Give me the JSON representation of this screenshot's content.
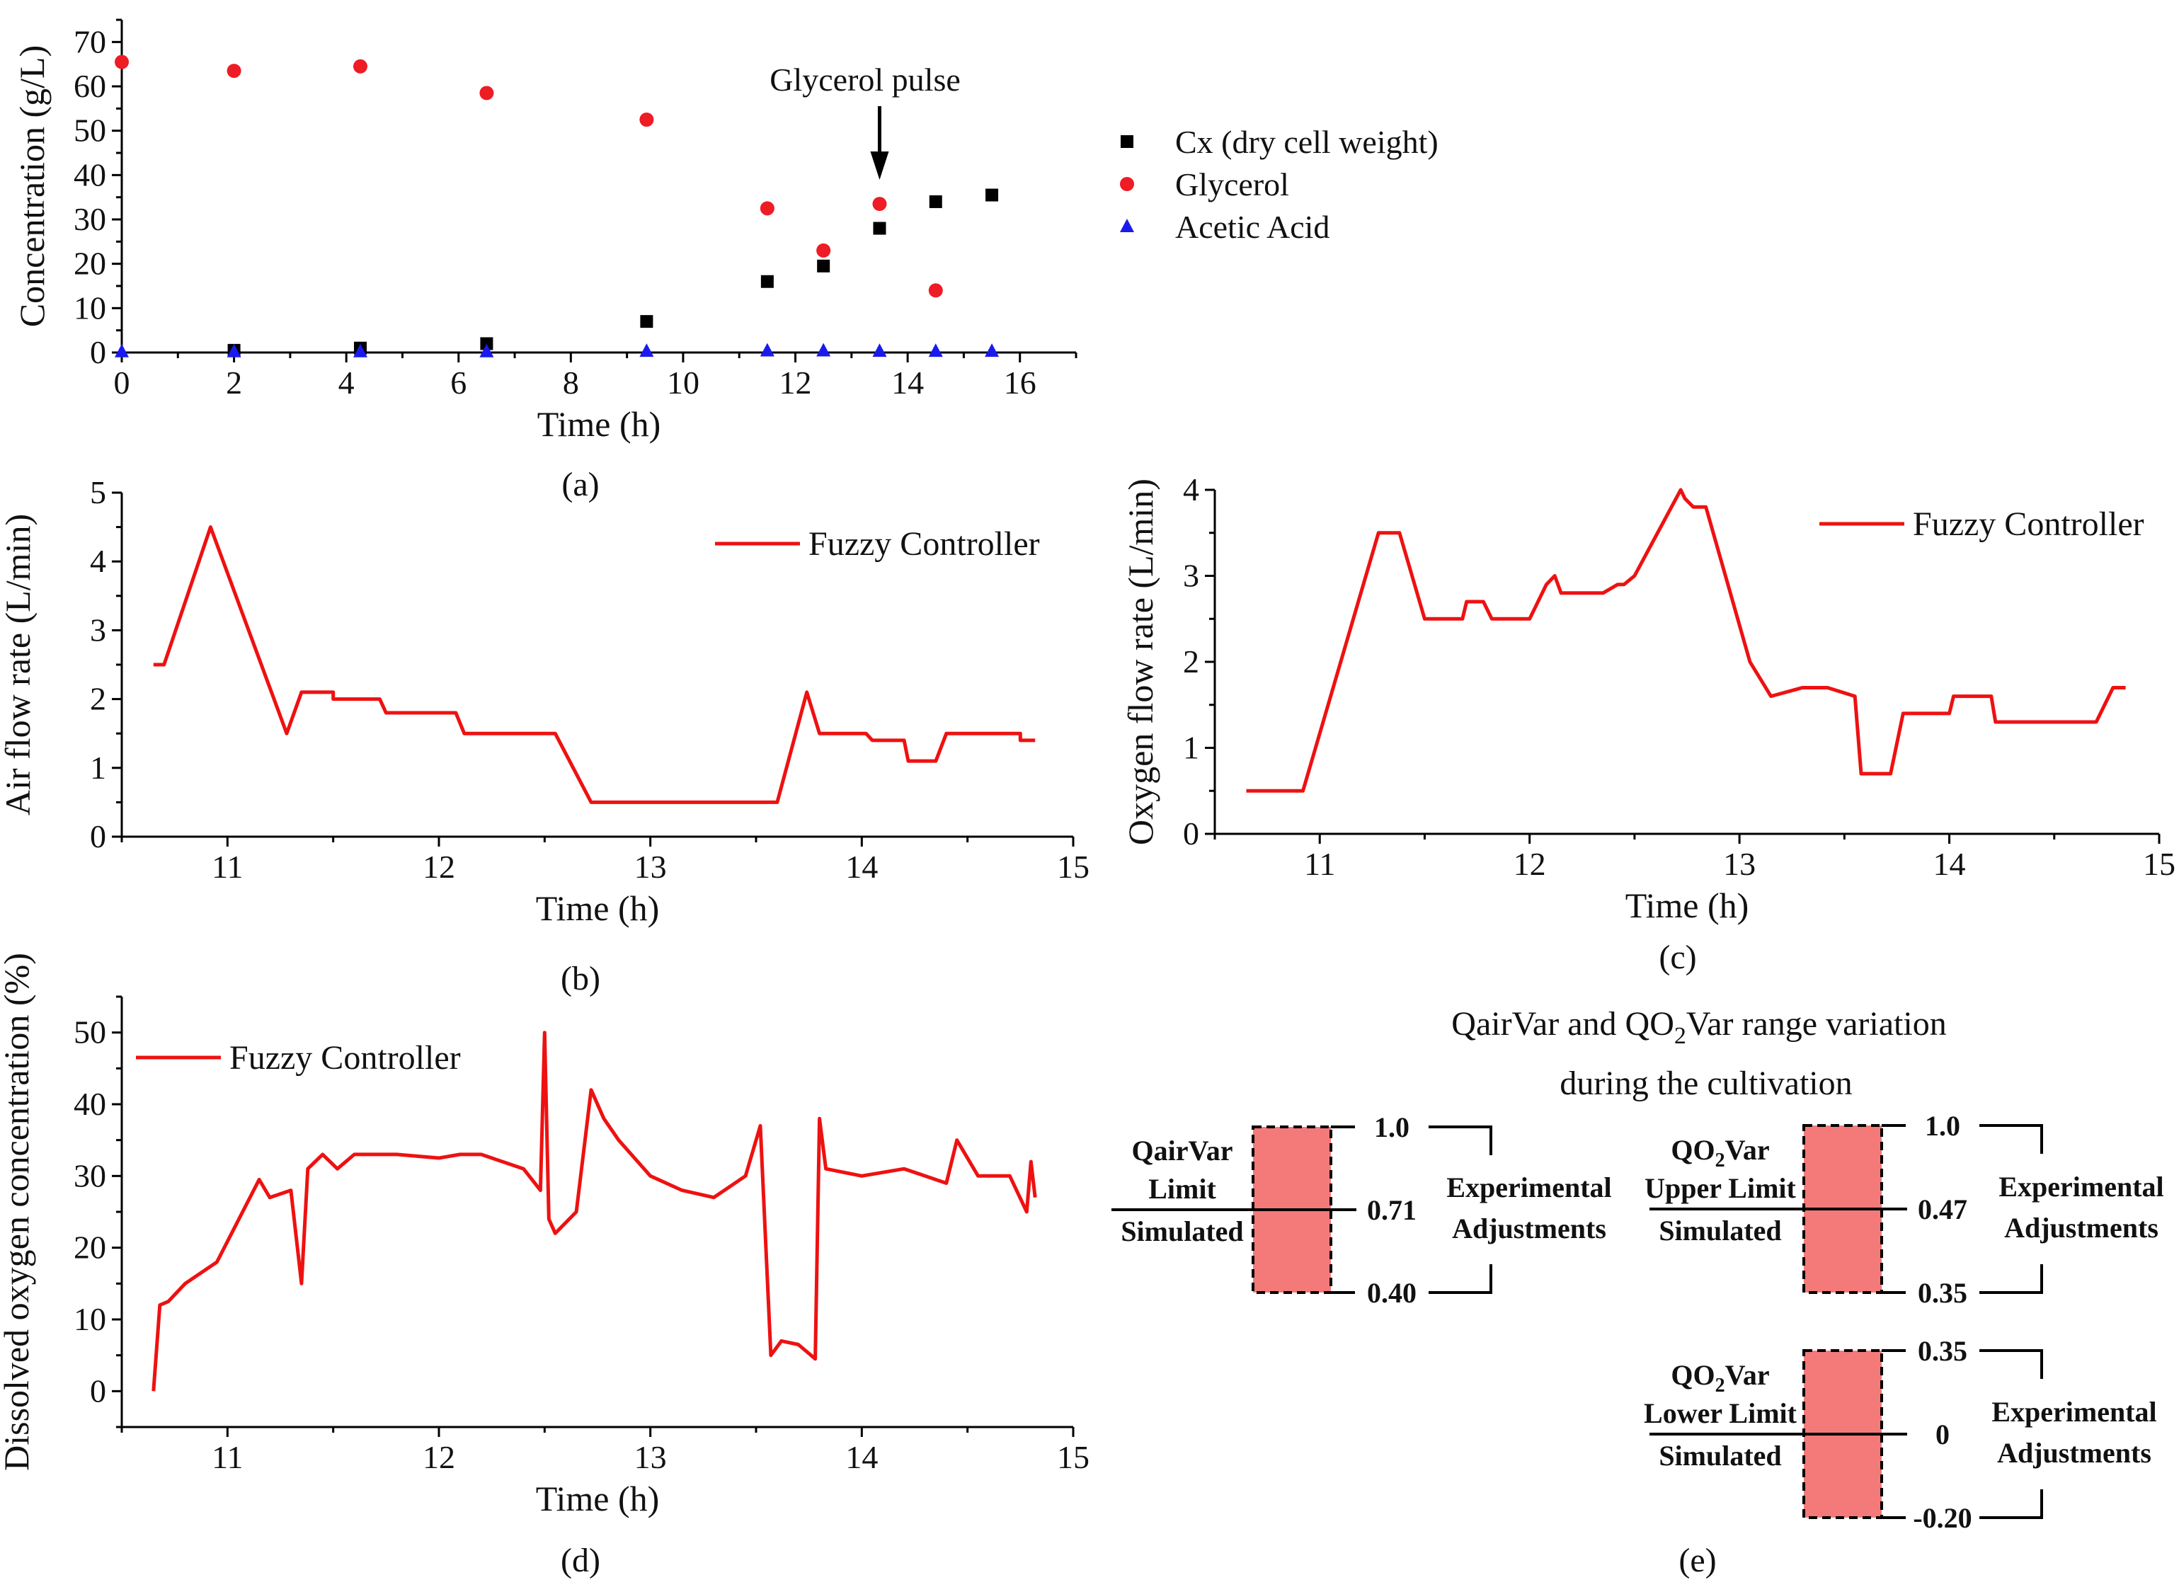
{
  "chart_data": [
    {
      "id": "a",
      "type": "scatter",
      "panel_label": "(a)",
      "xlabel": "Time (h)",
      "ylabel": "Concentration (g/L)",
      "xlim": [
        0,
        17
      ],
      "ylim": [
        0,
        75
      ],
      "xticks": [
        0,
        2,
        4,
        6,
        8,
        10,
        12,
        14,
        16
      ],
      "yticks": [
        0,
        10,
        20,
        30,
        40,
        50,
        60,
        70
      ],
      "annotation": "Glycerol pulse",
      "annotation_x": 13.5,
      "legend_position": "right",
      "series": [
        {
          "name": "Cx (dry cell weight)",
          "marker": "square",
          "color": "#000000",
          "x": [
            2,
            4.25,
            6.5,
            9.35,
            11.5,
            12.5,
            13.5,
            14.5,
            15.5
          ],
          "y": [
            0.5,
            1,
            2,
            7,
            16,
            19.5,
            28,
            34,
            35.5
          ]
        },
        {
          "name": "Glycerol",
          "marker": "circle",
          "color": "#ee1c25",
          "x": [
            0,
            2,
            4.25,
            6.5,
            9.35,
            11.5,
            12.5,
            13.5,
            14.5
          ],
          "y": [
            65.5,
            63.5,
            64.5,
            58.5,
            52.5,
            32.5,
            23,
            33.5,
            14
          ]
        },
        {
          "name": "Acetic Acid",
          "marker": "triangle",
          "color": "#1a1aee",
          "x": [
            0,
            2,
            4.25,
            6.5,
            9.35,
            11.5,
            12.5,
            13.5,
            14.5,
            15.5
          ],
          "y": [
            0.2,
            0.2,
            0.2,
            0.2,
            0.3,
            0.4,
            0.4,
            0.3,
            0.3,
            0.3
          ]
        }
      ]
    },
    {
      "id": "b",
      "type": "line",
      "panel_label": "(b)",
      "xlabel": "Time (h)",
      "ylabel": "Air flow rate (L/min)",
      "xlim": [
        10.5,
        15
      ],
      "ylim": [
        0,
        5
      ],
      "xticks": [
        11,
        12,
        13,
        14,
        15
      ],
      "yticks": [
        0,
        1,
        2,
        3,
        4,
        5
      ],
      "legend_position": "top-right",
      "series": [
        {
          "name": "Fuzzy Controller",
          "color": "#ee1111",
          "x": [
            10.65,
            10.7,
            10.92,
            11.28,
            11.35,
            11.5,
            11.5,
            11.72,
            11.75,
            12.08,
            12.12,
            12.55,
            12.72,
            13.6,
            13.74,
            13.8,
            14.02,
            14.05,
            14.2,
            14.22,
            14.35,
            14.4,
            14.75,
            14.75,
            14.82
          ],
          "y": [
            2.5,
            2.5,
            4.5,
            1.5,
            2.1,
            2.1,
            2.0,
            2.0,
            1.8,
            1.8,
            1.5,
            1.5,
            0.5,
            0.5,
            2.1,
            1.5,
            1.5,
            1.4,
            1.4,
            1.1,
            1.1,
            1.5,
            1.5,
            1.4,
            1.4
          ]
        }
      ]
    },
    {
      "id": "c",
      "type": "line",
      "panel_label": "(c)",
      "xlabel": "Time (h)",
      "ylabel": "Oxygen flow rate (L/min)",
      "xlim": [
        10.5,
        15
      ],
      "ylim": [
        0,
        4
      ],
      "xticks": [
        11,
        12,
        13,
        14,
        15
      ],
      "yticks": [
        0,
        1,
        2,
        3,
        4
      ],
      "legend_position": "top-right",
      "series": [
        {
          "name": "Fuzzy Controller",
          "color": "#ee1111",
          "x": [
            10.65,
            10.92,
            11.28,
            11.38,
            11.5,
            11.68,
            11.7,
            11.78,
            11.82,
            12.0,
            12.08,
            12.12,
            12.15,
            12.35,
            12.42,
            12.45,
            12.5,
            12.72,
            12.74,
            12.78,
            12.84,
            13.05,
            13.15,
            13.3,
            13.42,
            13.55,
            13.58,
            13.72,
            13.78,
            14.0,
            14.02,
            14.2,
            14.22,
            14.7,
            14.78,
            14.84
          ],
          "y": [
            0.5,
            0.5,
            3.5,
            3.5,
            2.5,
            2.5,
            2.7,
            2.7,
            2.5,
            2.5,
            2.9,
            3.0,
            2.8,
            2.8,
            2.9,
            2.9,
            3.0,
            4.0,
            3.9,
            3.8,
            3.8,
            2.0,
            1.6,
            1.7,
            1.7,
            1.6,
            0.7,
            0.7,
            1.4,
            1.4,
            1.6,
            1.6,
            1.3,
            1.3,
            1.7,
            1.7
          ]
        }
      ]
    },
    {
      "id": "d",
      "type": "line",
      "panel_label": "(d)",
      "xlabel": "Time (h)",
      "ylabel": "Dissolved oxygen concentration (%)",
      "xlim": [
        10.5,
        15
      ],
      "ylim": [
        -5,
        55
      ],
      "xticks": [
        11,
        12,
        13,
        14,
        15
      ],
      "yticks": [
        0,
        10,
        20,
        30,
        40,
        50
      ],
      "legend_position": "top-left",
      "series": [
        {
          "name": "Fuzzy Controller",
          "color": "#ee1111",
          "x": [
            10.65,
            10.68,
            10.72,
            10.8,
            10.95,
            11.15,
            11.2,
            11.3,
            11.35,
            11.38,
            11.45,
            11.52,
            11.6,
            11.8,
            12.0,
            12.1,
            12.2,
            12.4,
            12.48,
            12.5,
            12.52,
            12.55,
            12.65,
            12.72,
            12.78,
            12.85,
            13.0,
            13.15,
            13.3,
            13.45,
            13.52,
            13.57,
            13.62,
            13.7,
            13.78,
            13.8,
            13.83,
            14.0,
            14.2,
            14.4,
            14.45,
            14.55,
            14.7,
            14.78,
            14.8,
            14.82
          ],
          "y": [
            0,
            12,
            12.5,
            15,
            18,
            29.5,
            27,
            28,
            15,
            31,
            33,
            31,
            33,
            33,
            32.5,
            33,
            33,
            31,
            28,
            50,
            24,
            22,
            25,
            42,
            38,
            35,
            30,
            28,
            27,
            30,
            37,
            5,
            7,
            6.5,
            4.5,
            38,
            31,
            30,
            31,
            29,
            35,
            30,
            30,
            25,
            32,
            27
          ]
        }
      ]
    },
    {
      "id": "e",
      "type": "diagram",
      "panel_label": "(e)",
      "title_line1_prefix": "QairVar and QO",
      "title_line1_sub": "2",
      "title_line1_suffix": "Var range variation",
      "title_line2": "during the cultivation",
      "blocks": [
        {
          "label_lines": [
            "QairVar",
            "Limit",
            "Simulated"
          ],
          "right_label_lines": [
            "Experimental",
            "Adjustments"
          ],
          "values": [
            "1.0",
            "0.71",
            "0.40"
          ]
        },
        {
          "label_lines": [
            "QO|2|Var",
            "Upper Limit",
            "Simulated"
          ],
          "right_label_lines": [
            "Experimental",
            "Adjustments"
          ],
          "values": [
            "1.0",
            "0.47",
            "0.35"
          ]
        },
        {
          "label_lines": [
            "QO|2|Var",
            "Lower Limit",
            "Simulated"
          ],
          "right_label_lines": [
            "Experimental",
            "Adjustments"
          ],
          "values": [
            "0.35",
            "0",
            "-0.20"
          ]
        }
      ]
    }
  ]
}
